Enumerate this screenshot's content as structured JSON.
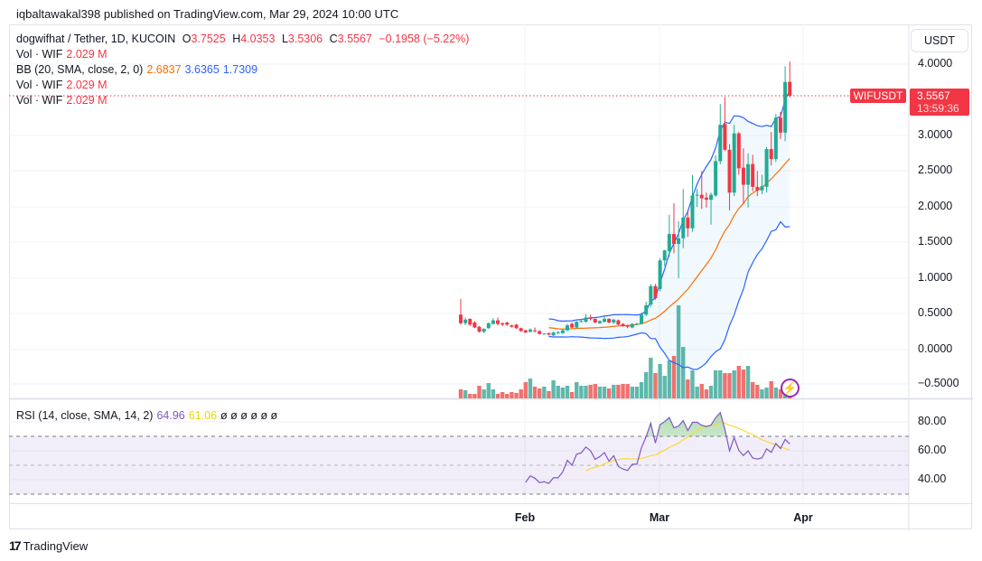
{
  "header": {
    "published": "iqbaltawakal398 published on TradingView.com, Mar 29, 2024 10:00 UTC"
  },
  "legend": {
    "symbol": "dogwifhat / Tether, 1D, KUCOIN",
    "o_label": "O",
    "o": "3.7525",
    "h_label": "H",
    "h": "4.0353",
    "l_label": "L",
    "l": "3.5306",
    "c_label": "C",
    "c": "3.5567",
    "change": "−0.1958 (−5.22%)",
    "vol_label": "Vol · WIF",
    "vol": "2.029 M",
    "bb_label": "BB (20, SMA, close, 2, 0)",
    "bb_basis": "2.6837",
    "bb_upper": "3.6365",
    "bb_lower": "1.7309",
    "rsi_label": "RSI (14, close, SMA, 14, 2)",
    "rsi": "64.96",
    "rsi_sma": "61.06",
    "rsi_na": "ø ø ø ø ø ø"
  },
  "price_axis": {
    "currency": "USDT",
    "labels": [
      "4.0000",
      "3.0000",
      "2.5000",
      "2.0000",
      "1.5000",
      "1.0000",
      "0.5000",
      "0.0000",
      "−0.5000"
    ],
    "last_symbol": "WIFUSDT",
    "last_price": "3.5567",
    "countdown": "13:59:36"
  },
  "rsi_axis": {
    "labels": [
      "80.00",
      "60.00",
      "40.00"
    ]
  },
  "time_axis": {
    "labels": [
      "Feb",
      "Mar",
      "Apr"
    ]
  },
  "footer": {
    "brand": "TradingView"
  },
  "colors": {
    "up": "#22ab94",
    "down": "#f23645",
    "bb_band": "#2962ff",
    "bb_basis": "#ff6d00",
    "rsi": "#7e57c2",
    "rsi_sma": "#fdd835"
  },
  "chart_data": {
    "type": "candlestick",
    "title": "dogwifhat / Tether, 1D, KUCOIN",
    "first_date": "2024-01-18",
    "last_date": "2024-03-29",
    "ylim": [
      -0.5,
      4.1
    ],
    "fields": [
      "open",
      "high",
      "low",
      "close",
      "volume_M"
    ],
    "candles": [
      [
        0.49,
        0.71,
        0.35,
        0.37,
        10
      ],
      [
        0.37,
        0.45,
        0.34,
        0.42,
        9
      ],
      [
        0.43,
        0.44,
        0.33,
        0.35,
        5
      ],
      [
        0.38,
        0.4,
        0.3,
        0.31,
        5
      ],
      [
        0.32,
        0.33,
        0.24,
        0.25,
        14
      ],
      [
        0.25,
        0.3,
        0.23,
        0.29,
        10
      ],
      [
        0.3,
        0.38,
        0.29,
        0.37,
        17
      ],
      [
        0.36,
        0.44,
        0.35,
        0.41,
        10
      ],
      [
        0.41,
        0.45,
        0.34,
        0.36,
        5
      ],
      [
        0.37,
        0.38,
        0.33,
        0.35,
        7
      ],
      [
        0.38,
        0.39,
        0.33,
        0.35,
        5
      ],
      [
        0.34,
        0.35,
        0.31,
        0.32,
        7
      ],
      [
        0.35,
        0.36,
        0.29,
        0.3,
        6
      ],
      [
        0.3,
        0.31,
        0.25,
        0.26,
        10
      ],
      [
        0.27,
        0.28,
        0.23,
        0.24,
        18
      ],
      [
        0.25,
        0.3,
        0.24,
        0.28,
        22
      ],
      [
        0.27,
        0.31,
        0.24,
        0.26,
        13
      ],
      [
        0.26,
        0.27,
        0.21,
        0.22,
        11
      ],
      [
        0.22,
        0.23,
        0.21,
        0.225,
        13
      ],
      [
        0.23,
        0.24,
        0.2,
        0.21,
        8
      ],
      [
        0.2,
        0.25,
        0.19,
        0.24,
        20
      ],
      [
        0.23,
        0.26,
        0.22,
        0.24,
        14
      ],
      [
        0.23,
        0.28,
        0.22,
        0.27,
        12
      ],
      [
        0.27,
        0.36,
        0.26,
        0.34,
        14
      ],
      [
        0.36,
        0.38,
        0.3,
        0.31,
        7
      ],
      [
        0.31,
        0.4,
        0.3,
        0.39,
        18
      ],
      [
        0.39,
        0.42,
        0.38,
        0.4,
        14
      ],
      [
        0.39,
        0.5,
        0.38,
        0.45,
        14
      ],
      [
        0.45,
        0.49,
        0.41,
        0.43,
        15
      ],
      [
        0.43,
        0.44,
        0.37,
        0.38,
        16
      ],
      [
        0.37,
        0.41,
        0.36,
        0.4,
        13
      ],
      [
        0.39,
        0.46,
        0.38,
        0.43,
        13
      ],
      [
        0.43,
        0.44,
        0.37,
        0.38,
        11
      ],
      [
        0.38,
        0.43,
        0.36,
        0.42,
        15
      ],
      [
        0.41,
        0.42,
        0.34,
        0.35,
        15
      ],
      [
        0.36,
        0.37,
        0.32,
        0.33,
        16
      ],
      [
        0.34,
        0.35,
        0.3,
        0.32,
        16
      ],
      [
        0.31,
        0.37,
        0.3,
        0.36,
        13
      ],
      [
        0.35,
        0.38,
        0.34,
        0.36,
        13
      ],
      [
        0.36,
        0.52,
        0.35,
        0.49,
        18
      ],
      [
        0.49,
        0.67,
        0.47,
        0.62,
        29
      ],
      [
        0.63,
        0.92,
        0.6,
        0.89,
        45
      ],
      [
        0.89,
        0.92,
        0.7,
        0.72,
        28
      ],
      [
        0.85,
        1.28,
        0.82,
        1.25,
        38
      ],
      [
        1.25,
        1.4,
        1.17,
        1.39,
        25
      ],
      [
        1.38,
        1.89,
        1.3,
        1.62,
        42
      ],
      [
        1.62,
        2.05,
        1.35,
        1.48,
        47
      ],
      [
        1.48,
        1.8,
        1.0,
        1.56,
        103
      ],
      [
        1.56,
        2.25,
        1.42,
        1.85,
        57
      ],
      [
        1.85,
        1.95,
        1.58,
        1.7,
        21
      ],
      [
        1.7,
        2.45,
        1.65,
        2.16,
        31
      ],
      [
        2.16,
        2.25,
        2.0,
        2.17,
        13
      ],
      [
        2.17,
        2.5,
        1.97,
        2.12,
        16
      ],
      [
        2.13,
        2.2,
        1.99,
        2.1,
        10
      ],
      [
        2.1,
        2.2,
        1.75,
        2.17,
        14
      ],
      [
        2.16,
        2.72,
        2.14,
        2.64,
        31
      ],
      [
        2.64,
        3.44,
        2.6,
        3.15,
        31
      ],
      [
        3.16,
        3.54,
        2.78,
        2.8,
        28
      ],
      [
        2.8,
        2.88,
        1.95,
        2.2,
        28
      ],
      [
        2.2,
        3.15,
        2.15,
        3.03,
        31
      ],
      [
        3.03,
        3.05,
        2.45,
        2.54,
        36
      ],
      [
        2.55,
        2.82,
        2.05,
        2.31,
        32
      ],
      [
        2.31,
        2.75,
        1.99,
        2.6,
        36
      ],
      [
        2.6,
        2.73,
        2.22,
        2.28,
        18
      ],
      [
        2.28,
        2.5,
        2.15,
        2.23,
        15
      ],
      [
        2.23,
        2.45,
        2.18,
        2.29,
        10
      ],
      [
        2.28,
        2.84,
        2.2,
        2.81,
        12
      ],
      [
        2.81,
        3.05,
        2.58,
        2.67,
        19
      ],
      [
        2.67,
        3.3,
        2.63,
        3.25,
        12
      ],
      [
        3.25,
        3.33,
        2.95,
        3.04,
        10
      ],
      [
        3.04,
        3.97,
        2.92,
        3.75,
        5
      ],
      [
        3.7525,
        4.0353,
        3.5306,
        3.5567,
        2.029
      ]
    ],
    "indicators": {
      "bb": {
        "length": 20,
        "mult": 2
      },
      "rsi": {
        "length": 14,
        "sma": 14,
        "levels": [
          70,
          50,
          30
        ]
      }
    }
  }
}
